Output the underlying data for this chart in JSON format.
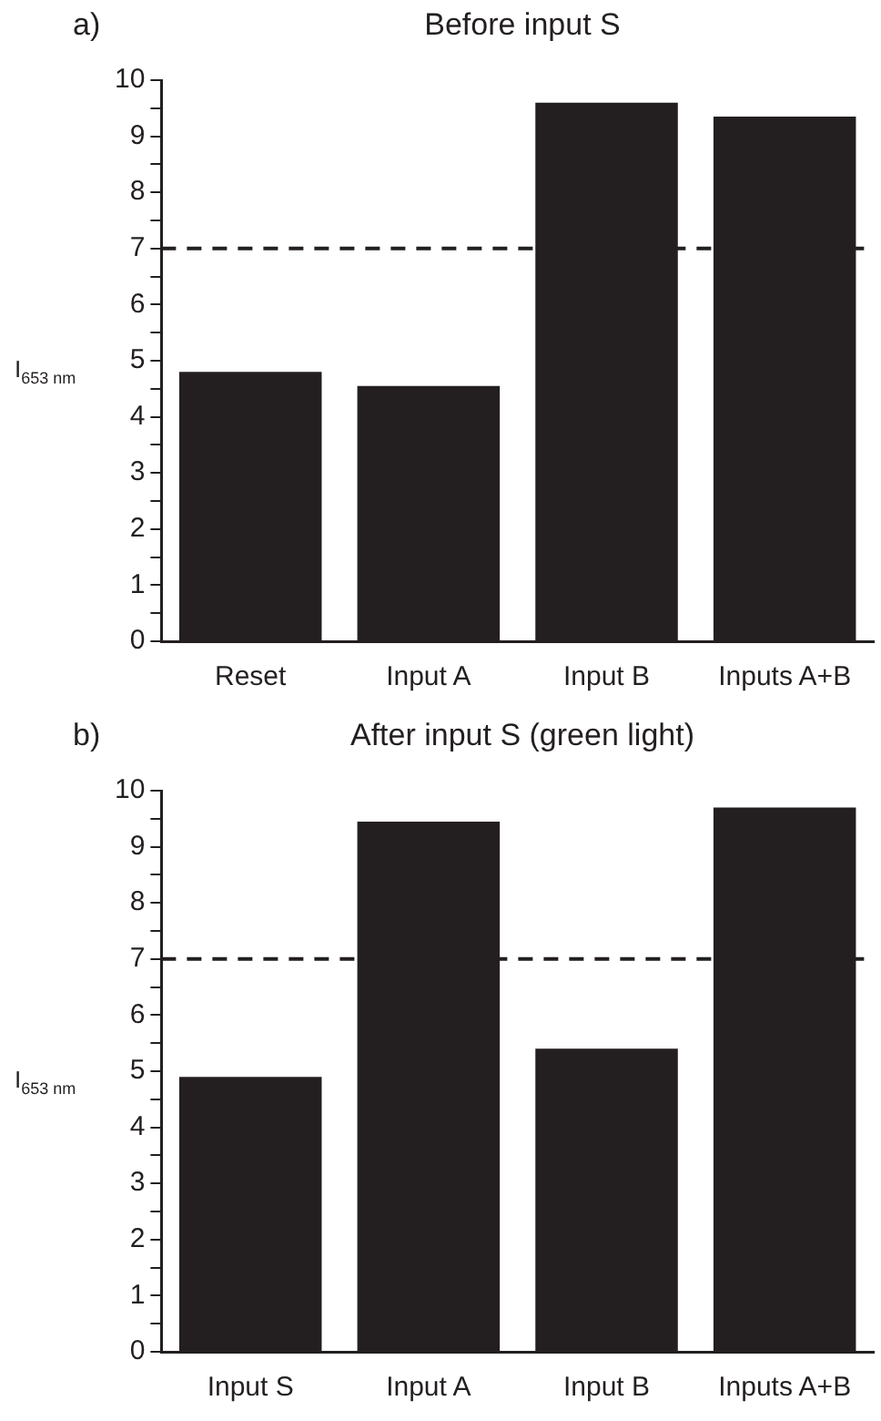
{
  "chart_data": [
    {
      "type": "bar",
      "title": "Before input S",
      "ylabel": "I$_{653 nm}$",
      "annotations": [
        "a)"
      ],
      "categories": [
        "Reset",
        "Input A",
        "Input B",
        "Inputs A+B"
      ],
      "values": [
        4.8,
        4.55,
        9.6,
        9.35
      ],
      "color": "#231f20",
      "ylim": [
        0,
        10
      ],
      "yticks": [
        0,
        {
          "value": 0.5,
          "label": null
        },
        1,
        {
          "value": 1.5,
          "label": null
        },
        2,
        {
          "value": 2.5,
          "label": null
        },
        3,
        {
          "value": 3.5,
          "label": null
        },
        4,
        {
          "value": 4.5,
          "label": null
        },
        5,
        {
          "value": 5.5,
          "label": null
        },
        6,
        {
          "value": 6.5,
          "label": null
        },
        7,
        {
          "value": 7.5,
          "label": null
        },
        8,
        {
          "value": 8.5,
          "label": null
        },
        9,
        {
          "value": 9.5,
          "label": null
        },
        10
      ],
      "ref_lines": [
        {
          "axis": "y",
          "value": 7,
          "color": "#231f20",
          "line_style": "dashed"
        }
      ],
      "grid": false,
      "legend": false
    },
    {
      "type": "bar",
      "title": "After input S (green light)",
      "ylabel": "I$_{653 nm}$",
      "annotations": [
        "b)"
      ],
      "categories": [
        "Input S",
        "Input A",
        "Input B",
        "Inputs A+B"
      ],
      "values": [
        4.9,
        9.45,
        5.4,
        9.7
      ],
      "color": "#231f20",
      "ylim": [
        0,
        10
      ],
      "yticks": [
        0,
        {
          "value": 0.5,
          "label": null
        },
        1,
        {
          "value": 1.5,
          "label": null
        },
        2,
        {
          "value": 2.5,
          "label": null
        },
        3,
        {
          "value": 3.5,
          "label": null
        },
        4,
        {
          "value": 4.5,
          "label": null
        },
        5,
        {
          "value": 5.5,
          "label": null
        },
        6,
        {
          "value": 6.5,
          "label": null
        },
        7,
        {
          "value": 7.5,
          "label": null
        },
        8,
        {
          "value": 8.5,
          "label": null
        },
        9,
        {
          "value": 9.5,
          "label": null
        },
        10
      ],
      "ref_lines": [
        {
          "axis": "y",
          "value": 7,
          "color": "#231f20",
          "line_style": "dashed"
        }
      ],
      "grid": false,
      "legend": false
    }
  ]
}
